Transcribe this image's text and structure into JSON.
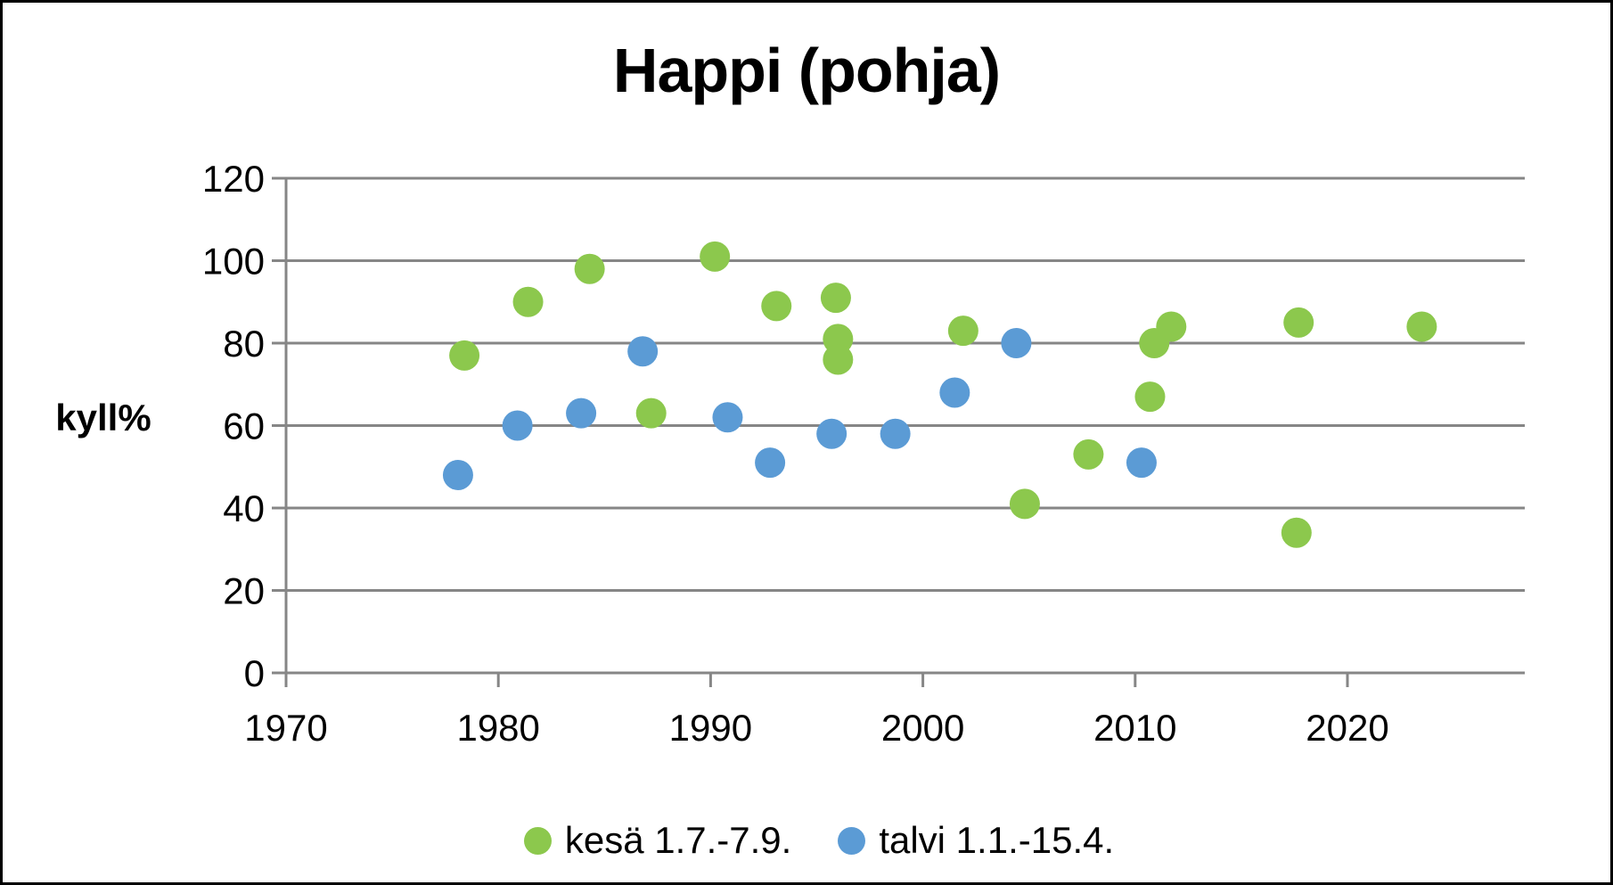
{
  "chart_data": {
    "type": "scatter",
    "title": "Happi (pohja)",
    "xlabel": "",
    "ylabel": "kyll%",
    "xlim": [
      1970,
      2028
    ],
    "ylim": [
      0,
      120
    ],
    "x_ticks": [
      1970,
      1980,
      1990,
      2000,
      2010,
      2020
    ],
    "y_ticks": [
      0,
      20,
      40,
      60,
      80,
      100,
      120
    ],
    "grid": "horizontal",
    "legend_position": "bottom",
    "series": [
      {
        "name": "kesä 1.7.-7.9.",
        "color": "#8CC84D",
        "points": [
          {
            "x": 1978.4,
            "y": 77
          },
          {
            "x": 1981.4,
            "y": 90
          },
          {
            "x": 1984.3,
            "y": 98
          },
          {
            "x": 1987.2,
            "y": 63
          },
          {
            "x": 1990.2,
            "y": 101
          },
          {
            "x": 1993.1,
            "y": 89
          },
          {
            "x": 1995.9,
            "y": 91
          },
          {
            "x": 1996.0,
            "y": 81
          },
          {
            "x": 1996.0,
            "y": 76
          },
          {
            "x": 2001.9,
            "y": 83
          },
          {
            "x": 2004.8,
            "y": 41
          },
          {
            "x": 2007.8,
            "y": 53
          },
          {
            "x": 2010.7,
            "y": 67
          },
          {
            "x": 2010.9,
            "y": 80
          },
          {
            "x": 2011.7,
            "y": 84
          },
          {
            "x": 2017.6,
            "y": 34
          },
          {
            "x": 2017.7,
            "y": 85
          },
          {
            "x": 2023.5,
            "y": 84
          }
        ]
      },
      {
        "name": "talvi 1.1.-15.4.",
        "color": "#5B9BD5",
        "points": [
          {
            "x": 1978.1,
            "y": 48
          },
          {
            "x": 1980.9,
            "y": 60
          },
          {
            "x": 1983.9,
            "y": 63
          },
          {
            "x": 1986.8,
            "y": 78
          },
          {
            "x": 1990.8,
            "y": 62
          },
          {
            "x": 1992.8,
            "y": 51
          },
          {
            "x": 1995.7,
            "y": 58
          },
          {
            "x": 1998.7,
            "y": 58
          },
          {
            "x": 2001.5,
            "y": 68
          },
          {
            "x": 2004.4,
            "y": 80
          },
          {
            "x": 2010.3,
            "y": 51
          }
        ]
      }
    ]
  },
  "colors": {
    "grid": "#868686",
    "axis": "#868686",
    "text": "#000000",
    "background": "#FFFFFF",
    "border": "#000000"
  }
}
